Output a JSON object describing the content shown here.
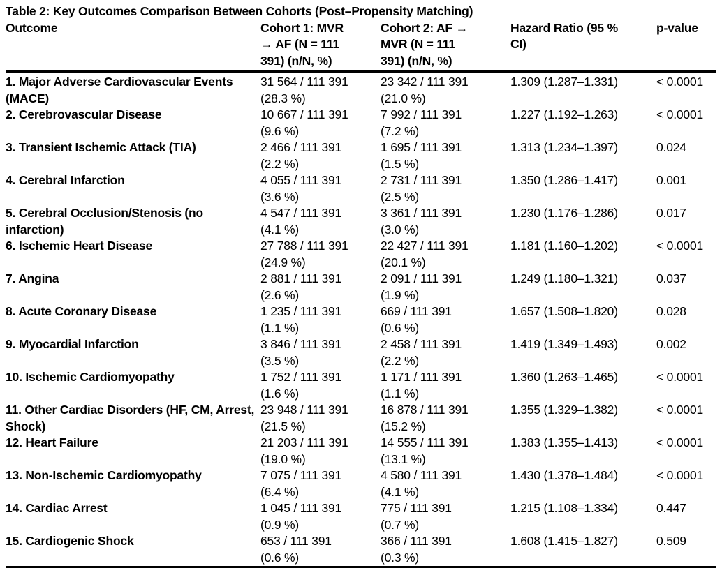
{
  "title": "Table 2: Key Outcomes Comparison Between Cohorts (Post–Propensity Matching)",
  "table": {
    "columns": [
      {
        "label": "Outcome"
      },
      {
        "label": "Cohort 1: MVR\n→ AF (N = 111\n391) (n/N, %)"
      },
      {
        "label": "Cohort 2: AF →\nMVR (N = 111\n391) (n/N, %)"
      },
      {
        "label": "Hazard Ratio (95 %\nCI)"
      },
      {
        "label": "p-value"
      }
    ],
    "rows": [
      {
        "outcome": "1. Major Adverse Cardiovascular Events (MACE)",
        "cohort1_n": "31 564 / 111 391",
        "cohort1_pct": "(28.3 %)",
        "cohort2_n": "23 342 / 111 391",
        "cohort2_pct": "(21.0 %)",
        "hazard_ratio": "1.309 (1.287–1.331)",
        "p_value": "< 0.0001"
      },
      {
        "outcome": "2. Cerebrovascular Disease",
        "cohort1_n": "10 667 / 111 391",
        "cohort1_pct": "(9.6 %)",
        "cohort2_n": "7 992 / 111 391",
        "cohort2_pct": "(7.2 %)",
        "hazard_ratio": "1.227 (1.192–1.263)",
        "p_value": "< 0.0001"
      },
      {
        "outcome": "3. Transient Ischemic Attack (TIA)",
        "cohort1_n": "2 466 / 111 391",
        "cohort1_pct": "(2.2 %)",
        "cohort2_n": "1 695 / 111 391",
        "cohort2_pct": "(1.5 %)",
        "hazard_ratio": "1.313 (1.234–1.397)",
        "p_value": "0.024"
      },
      {
        "outcome": "4. Cerebral Infarction",
        "cohort1_n": "4 055 / 111 391",
        "cohort1_pct": "(3.6 %)",
        "cohort2_n": "2 731 / 111 391",
        "cohort2_pct": "(2.5 %)",
        "hazard_ratio": "1.350 (1.286–1.417)",
        "p_value": "0.001"
      },
      {
        "outcome": "5. Cerebral Occlusion/Stenosis (no infarction)",
        "cohort1_n": "4 547 / 111 391",
        "cohort1_pct": "(4.1 %)",
        "cohort2_n": "3 361 / 111 391",
        "cohort2_pct": "(3.0 %)",
        "hazard_ratio": "1.230 (1.176–1.286)",
        "p_value": "0.017"
      },
      {
        "outcome": "6. Ischemic Heart Disease",
        "cohort1_n": "27 788 / 111 391",
        "cohort1_pct": "(24.9 %)",
        "cohort2_n": "22 427 / 111 391",
        "cohort2_pct": "(20.1 %)",
        "hazard_ratio": "1.181 (1.160–1.202)",
        "p_value": "< 0.0001"
      },
      {
        "outcome": "7. Angina",
        "cohort1_n": "2 881 / 111 391",
        "cohort1_pct": "(2.6 %)",
        "cohort2_n": "2 091 / 111 391",
        "cohort2_pct": "(1.9 %)",
        "hazard_ratio": "1.249 (1.180–1.321)",
        "p_value": "0.037"
      },
      {
        "outcome": "8. Acute Coronary Disease",
        "cohort1_n": "1 235 / 111 391",
        "cohort1_pct": "(1.1 %)",
        "cohort2_n": "669 / 111 391",
        "cohort2_pct": "(0.6 %)",
        "hazard_ratio": "1.657 (1.508–1.820)",
        "p_value": "0.028"
      },
      {
        "outcome": "9. Myocardial Infarction",
        "cohort1_n": "3 846 / 111 391",
        "cohort1_pct": "(3.5 %)",
        "cohort2_n": "2 458 / 111 391",
        "cohort2_pct": "(2.2 %)",
        "hazard_ratio": "1.419 (1.349–1.493)",
        "p_value": "0.002"
      },
      {
        "outcome": "10. Ischemic Cardiomyopathy",
        "cohort1_n": "1 752 / 111 391",
        "cohort1_pct": "(1.6 %)",
        "cohort2_n": "1 171 / 111 391",
        "cohort2_pct": "(1.1 %)",
        "hazard_ratio": "1.360 (1.263–1.465)",
        "p_value": "< 0.0001"
      },
      {
        "outcome": "11. Other Cardiac Disorders (HF, CM, Arrest, Shock)",
        "cohort1_n": "23 948 / 111 391",
        "cohort1_pct": "(21.5 %)",
        "cohort2_n": "16 878 / 111 391",
        "cohort2_pct": "(15.2 %)",
        "hazard_ratio": "1.355 (1.329–1.382)",
        "p_value": "< 0.0001"
      },
      {
        "outcome": "12. Heart Failure",
        "cohort1_n": "21 203 / 111 391",
        "cohort1_pct": "(19.0 %)",
        "cohort2_n": "14 555 / 111 391",
        "cohort2_pct": "(13.1 %)",
        "hazard_ratio": "1.383 (1.355–1.413)",
        "p_value": "< 0.0001"
      },
      {
        "outcome": "13. Non-Ischemic Cardiomyopathy",
        "cohort1_n": "7 075 / 111 391",
        "cohort1_pct": "(6.4 %)",
        "cohort2_n": "4 580 / 111 391",
        "cohort2_pct": "(4.1 %)",
        "hazard_ratio": "1.430 (1.378–1.484)",
        "p_value": "< 0.0001"
      },
      {
        "outcome": "14. Cardiac Arrest",
        "cohort1_n": "1 045 / 111 391",
        "cohort1_pct": "(0.9 %)",
        "cohort2_n": "775 / 111 391",
        "cohort2_pct": "(0.7 %)",
        "hazard_ratio": "1.215 (1.108–1.334)",
        "p_value": "0.447"
      },
      {
        "outcome": "15. Cardiogenic Shock",
        "cohort1_n": "653 / 111 391",
        "cohort1_pct": "(0.6 %)",
        "cohort2_n": "366 / 111 391",
        "cohort2_pct": "(0.3 %)",
        "hazard_ratio": "1.608 (1.415–1.827)",
        "p_value": "0.509"
      }
    ]
  }
}
